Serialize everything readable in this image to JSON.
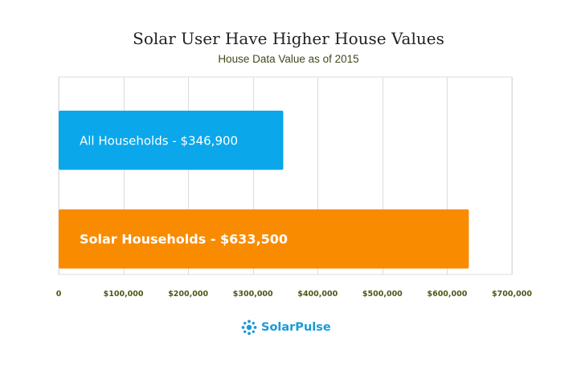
{
  "chart_data": {
    "type": "bar",
    "orientation": "horizontal",
    "title": "Solar User Have Higher House Values",
    "subtitle": "House Data Value as of 2015",
    "categories": [
      "All Households",
      "Solar Households"
    ],
    "values": [
      346900,
      633500
    ],
    "data_labels": [
      "All Households - $346,900",
      "Solar Households - $633,500"
    ],
    "bar_colors": [
      "#0aa7eb",
      "#f98b01"
    ],
    "xlim": [
      0,
      700000
    ],
    "x_ticks": [
      0,
      100000,
      200000,
      300000,
      400000,
      500000,
      600000,
      700000
    ],
    "x_tick_labels": [
      "0",
      "$100,000",
      "$200,000",
      "$300,000",
      "$400,000",
      "$500,000",
      "$600,000",
      "$700,000"
    ],
    "grid": true
  },
  "brand": {
    "name": "SolarPulse",
    "color": "#1a9ad6",
    "icon": "sun-icon"
  }
}
